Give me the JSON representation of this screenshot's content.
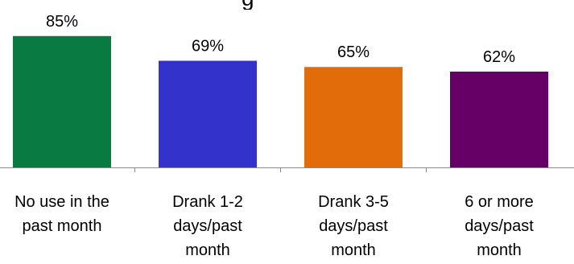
{
  "chart_data": {
    "type": "bar",
    "title_fragment": "g",
    "categories": [
      [
        "No use in the",
        "past month"
      ],
      [
        "Drank 1-2",
        "days/past",
        "month"
      ],
      [
        "Drank 3-5",
        "days/past",
        "month"
      ],
      [
        "6 or more",
        "days/past",
        "month"
      ]
    ],
    "values": [
      85,
      69,
      65,
      62
    ],
    "data_labels": [
      "85%",
      "69%",
      "65%",
      "62%"
    ],
    "colors": [
      "#0a7a43",
      "#3333cc",
      "#e36c0a",
      "#660066"
    ],
    "xlabel": "",
    "ylabel": "",
    "ylim": [
      0,
      100
    ],
    "grid": false,
    "legend": "none"
  }
}
